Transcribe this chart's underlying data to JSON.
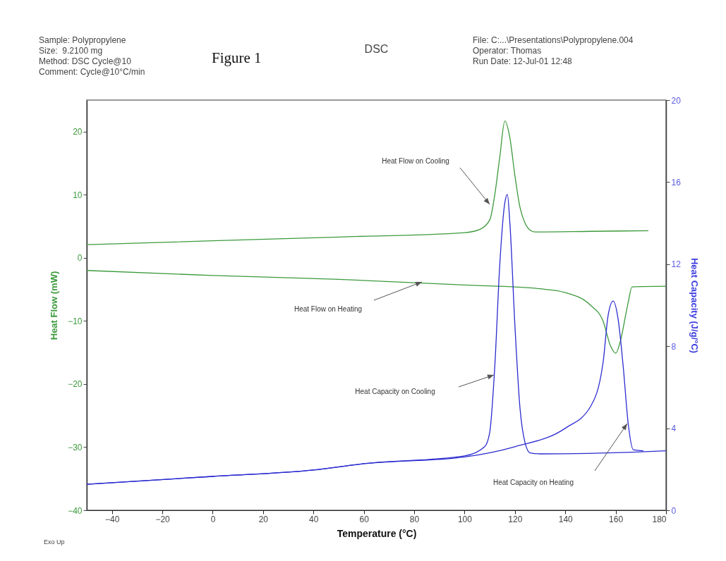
{
  "chart_data": {
    "type": "line",
    "title": "DSC",
    "xlabel": "Temperature  (°C)",
    "ylabel": "Heat Flow (mW)",
    "y2label": "Heat Capacity (J/g/°C)",
    "xlim": [
      -50,
      180
    ],
    "xticks": [
      -40,
      -20,
      0,
      20,
      40,
      60,
      80,
      100,
      120,
      140,
      160,
      180
    ],
    "ylim": [
      -40,
      25
    ],
    "yticks": [
      -40,
      -30,
      -20,
      -10,
      0,
      10,
      20
    ],
    "y2lim": [
      0,
      20
    ],
    "y2ticks": [
      0,
      4,
      8,
      12,
      16,
      20
    ],
    "grid": false,
    "legend": false,
    "series": [
      {
        "color": "#3c9a3c",
        "x": [
          -50,
          0,
          50,
          100,
          106,
          110,
          112,
          114,
          116,
          118,
          120,
          122,
          124,
          126,
          128,
          150,
          173
        ],
        "values": [
          2.1,
          2.7,
          3.3,
          4.0,
          4.5,
          6,
          10,
          16,
          21.7,
          19,
          13,
          8,
          5.5,
          4.4,
          4.1,
          4.2,
          4.3
        ]
      },
      {
        "color": "#3c9a3c",
        "x": [
          -50,
          0,
          50,
          100,
          130,
          140,
          150,
          155,
          158,
          160,
          162,
          164,
          165,
          166.5,
          180
        ],
        "values": [
          -2.0,
          -2.8,
          -3.4,
          -4.3,
          -4.9,
          -5.5,
          -7.5,
          -10,
          -14,
          -15.1,
          -13,
          -9,
          -7,
          -4.6,
          -4.5
        ]
      },
      {
        "color": "#2b2bd0",
        "axis": "y2",
        "x": [
          -50,
          0,
          40,
          60,
          100,
          108,
          110,
          112,
          114,
          116,
          117,
          118,
          120,
          122,
          124,
          126,
          130,
          170,
          180
        ],
        "values": [
          1.27,
          1.65,
          1.96,
          2.27,
          2.65,
          3.1,
          3.8,
          7,
          12,
          15,
          15.4,
          14,
          9,
          5,
          3.3,
          2.8,
          2.75,
          2.85,
          2.9
        ]
      },
      {
        "color": "#2b2bd0",
        "axis": "y2",
        "x": [
          -50,
          0,
          40,
          60,
          100,
          120,
          140,
          150,
          155,
          157,
          159,
          161,
          163,
          165,
          167,
          171
        ],
        "values": [
          1.27,
          1.65,
          1.96,
          2.27,
          2.6,
          3.1,
          4.0,
          5.05,
          7.2,
          9.5,
          10.2,
          9.3,
          7,
          4.2,
          2.95,
          2.9
        ]
      }
    ],
    "annotations": [
      "Sample: Polypropylene",
      "Size:  9.2100 mg",
      "Method: DSC Cycle@10",
      "Comment: Cycle@10°C/min",
      "Figure 1",
      "File: C:...\\Presentations\\Polypropylene.004",
      "Operator: Thomas",
      "Run Date: 12-Jul-01 12:48",
      "Exo Up",
      "Heat Flow on Cooling",
      "Heat Flow on Heating",
      "Heat Capacity on Cooling",
      "Heat Capacity on Heating"
    ]
  }
}
